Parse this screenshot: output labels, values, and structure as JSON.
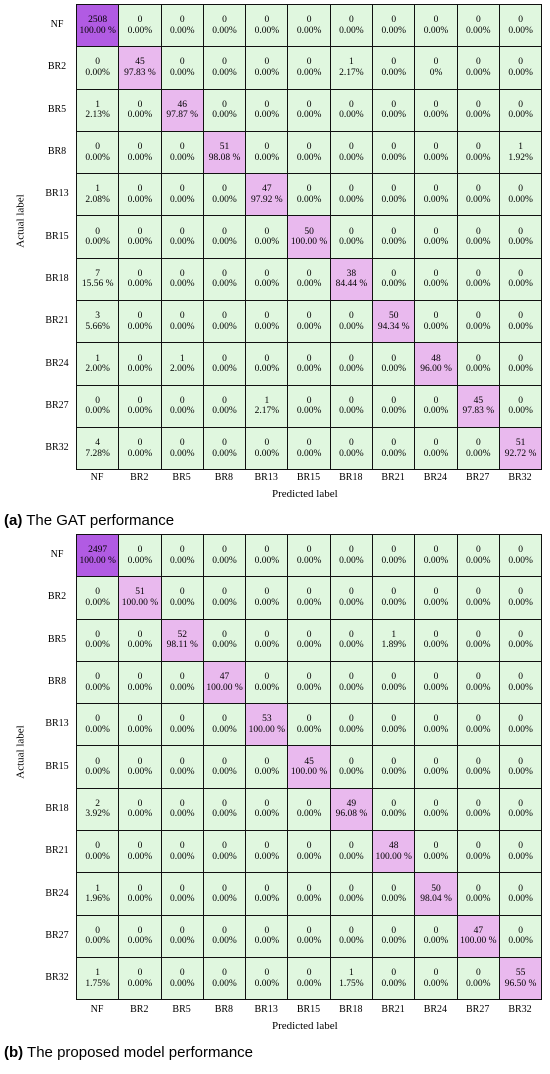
{
  "classes": [
    "NF",
    "BR2",
    "BR5",
    "BR8",
    "BR13",
    "BR15",
    "BR18",
    "BR21",
    "BR24",
    "BR27",
    "BR32"
  ],
  "colors": {
    "diag_strong": "#b15be3",
    "diag": "#e9b9ee",
    "off": "#e0f7df",
    "grid": "#111111"
  },
  "chart_data": [
    {
      "type": "heatmap",
      "caption_tag": "(a)",
      "caption_text": " The GAT performance",
      "xlabel": "Predicted label",
      "ylabel": "Actual label",
      "rows": [
        "NF",
        "BR2",
        "BR5",
        "BR8",
        "BR13",
        "BR15",
        "BR18",
        "BR21",
        "BR24",
        "BR27",
        "BR32"
      ],
      "cols": [
        "NF",
        "BR2",
        "BR5",
        "BR8",
        "BR13",
        "BR15",
        "BR18",
        "BR21",
        "BR24",
        "BR27",
        "BR32"
      ],
      "cells": [
        [
          [
            "2508",
            "100.00 %"
          ],
          [
            "0",
            "0.00%"
          ],
          [
            "0",
            "0.00%"
          ],
          [
            "0",
            "0.00%"
          ],
          [
            "0",
            "0.00%"
          ],
          [
            "0",
            "0.00%"
          ],
          [
            "0",
            "0.00%"
          ],
          [
            "0",
            "0.00%"
          ],
          [
            "0",
            "0.00%"
          ],
          [
            "0",
            "0.00%"
          ],
          [
            "0",
            "0.00%"
          ]
        ],
        [
          [
            "0",
            "0.00%"
          ],
          [
            "45",
            "97.83 %"
          ],
          [
            "0",
            "0.00%"
          ],
          [
            "0",
            "0.00%"
          ],
          [
            "0",
            "0.00%"
          ],
          [
            "0",
            "0.00%"
          ],
          [
            "1",
            "2.17%"
          ],
          [
            "0",
            "0.00%"
          ],
          [
            "0",
            "0%"
          ],
          [
            "0",
            "0.00%"
          ],
          [
            "0",
            "0.00%"
          ]
        ],
        [
          [
            "1",
            "2.13%"
          ],
          [
            "0",
            "0.00%"
          ],
          [
            "46",
            "97.87 %"
          ],
          [
            "0",
            "0.00%"
          ],
          [
            "0",
            "0.00%"
          ],
          [
            "0",
            "0.00%"
          ],
          [
            "0",
            "0.00%"
          ],
          [
            "0",
            "0.00%"
          ],
          [
            "0",
            "0.00%"
          ],
          [
            "0",
            "0.00%"
          ],
          [
            "0",
            "0.00%"
          ]
        ],
        [
          [
            "0",
            "0.00%"
          ],
          [
            "0",
            "0.00%"
          ],
          [
            "0",
            "0.00%"
          ],
          [
            "51",
            "98.08 %"
          ],
          [
            "0",
            "0.00%"
          ],
          [
            "0",
            "0.00%"
          ],
          [
            "0",
            "0.00%"
          ],
          [
            "0",
            "0.00%"
          ],
          [
            "0",
            "0.00%"
          ],
          [
            "0",
            "0.00%"
          ],
          [
            "1",
            "1.92%"
          ]
        ],
        [
          [
            "1",
            "2.08%"
          ],
          [
            "0",
            "0.00%"
          ],
          [
            "0",
            "0.00%"
          ],
          [
            "0",
            "0.00%"
          ],
          [
            "47",
            "97.92 %"
          ],
          [
            "0",
            "0.00%"
          ],
          [
            "0",
            "0.00%"
          ],
          [
            "0",
            "0.00%"
          ],
          [
            "0",
            "0.00%"
          ],
          [
            "0",
            "0.00%"
          ],
          [
            "0",
            "0.00%"
          ]
        ],
        [
          [
            "0",
            "0.00%"
          ],
          [
            "0",
            "0.00%"
          ],
          [
            "0",
            "0.00%"
          ],
          [
            "0",
            "0.00%"
          ],
          [
            "0",
            "0.00%"
          ],
          [
            "50",
            "100.00 %"
          ],
          [
            "0",
            "0.00%"
          ],
          [
            "0",
            "0.00%"
          ],
          [
            "0",
            "0.00%"
          ],
          [
            "0",
            "0.00%"
          ],
          [
            "0",
            "0.00%"
          ]
        ],
        [
          [
            "7",
            "15.56 %"
          ],
          [
            "0",
            "0.00%"
          ],
          [
            "0",
            "0.00%"
          ],
          [
            "0",
            "0.00%"
          ],
          [
            "0",
            "0.00%"
          ],
          [
            "0",
            "0.00%"
          ],
          [
            "38",
            "84.44 %"
          ],
          [
            "0",
            "0.00%"
          ],
          [
            "0",
            "0.00%"
          ],
          [
            "0",
            "0.00%"
          ],
          [
            "0",
            "0.00%"
          ]
        ],
        [
          [
            "3",
            "5.66%"
          ],
          [
            "0",
            "0.00%"
          ],
          [
            "0",
            "0.00%"
          ],
          [
            "0",
            "0.00%"
          ],
          [
            "0",
            "0.00%"
          ],
          [
            "0",
            "0.00%"
          ],
          [
            "0",
            "0.00%"
          ],
          [
            "50",
            "94.34 %"
          ],
          [
            "0",
            "0.00%"
          ],
          [
            "0",
            "0.00%"
          ],
          [
            "0",
            "0.00%"
          ]
        ],
        [
          [
            "1",
            "2.00%"
          ],
          [
            "0",
            "0.00%"
          ],
          [
            "1",
            "2.00%"
          ],
          [
            "0",
            "0.00%"
          ],
          [
            "0",
            "0.00%"
          ],
          [
            "0",
            "0.00%"
          ],
          [
            "0",
            "0.00%"
          ],
          [
            "0",
            "0.00%"
          ],
          [
            "48",
            "96.00 %"
          ],
          [
            "0",
            "0.00%"
          ],
          [
            "0",
            "0.00%"
          ]
        ],
        [
          [
            "0",
            "0.00%"
          ],
          [
            "0",
            "0.00%"
          ],
          [
            "0",
            "0.00%"
          ],
          [
            "0",
            "0.00%"
          ],
          [
            "1",
            "2.17%"
          ],
          [
            "0",
            "0.00%"
          ],
          [
            "0",
            "0.00%"
          ],
          [
            "0",
            "0.00%"
          ],
          [
            "0",
            "0.00%"
          ],
          [
            "45",
            "97.83 %"
          ],
          [
            "0",
            "0.00%"
          ]
        ],
        [
          [
            "4",
            "7.28%"
          ],
          [
            "0",
            "0.00%"
          ],
          [
            "0",
            "0.00%"
          ],
          [
            "0",
            "0.00%"
          ],
          [
            "0",
            "0.00%"
          ],
          [
            "0",
            "0.00%"
          ],
          [
            "0",
            "0.00%"
          ],
          [
            "0",
            "0.00%"
          ],
          [
            "0",
            "0.00%"
          ],
          [
            "0",
            "0.00%"
          ],
          [
            "51",
            "92.72 %"
          ]
        ]
      ]
    },
    {
      "type": "heatmap",
      "caption_tag": "(b)",
      "caption_text": " The proposed model performance",
      "xlabel": "Predicted label",
      "ylabel": "Actual label",
      "rows": [
        "NF",
        "BR2",
        "BR5",
        "BR8",
        "BR13",
        "BR15",
        "BR18",
        "BR21",
        "BR24",
        "BR27",
        "BR32"
      ],
      "cols": [
        "NF",
        "BR2",
        "BR5",
        "BR8",
        "BR13",
        "BR15",
        "BR18",
        "BR21",
        "BR24",
        "BR27",
        "BR32"
      ],
      "cells": [
        [
          [
            "2497",
            "100.00 %"
          ],
          [
            "0",
            "0.00%"
          ],
          [
            "0",
            "0.00%"
          ],
          [
            "0",
            "0.00%"
          ],
          [
            "0",
            "0.00%"
          ],
          [
            "0",
            "0.00%"
          ],
          [
            "0",
            "0.00%"
          ],
          [
            "0",
            "0.00%"
          ],
          [
            "0",
            "0.00%"
          ],
          [
            "0",
            "0.00%"
          ],
          [
            "0",
            "0.00%"
          ]
        ],
        [
          [
            "0",
            "0.00%"
          ],
          [
            "51",
            "100.00 %"
          ],
          [
            "0",
            "0.00%"
          ],
          [
            "0",
            "0.00%"
          ],
          [
            "0",
            "0.00%"
          ],
          [
            "0",
            "0.00%"
          ],
          [
            "0",
            "0.00%"
          ],
          [
            "0",
            "0.00%"
          ],
          [
            "0",
            "0.00%"
          ],
          [
            "0",
            "0.00%"
          ],
          [
            "0",
            "0.00%"
          ]
        ],
        [
          [
            "0",
            "0.00%"
          ],
          [
            "0",
            "0.00%"
          ],
          [
            "52",
            "98.11 %"
          ],
          [
            "0",
            "0.00%"
          ],
          [
            "0",
            "0.00%"
          ],
          [
            "0",
            "0.00%"
          ],
          [
            "0",
            "0.00%"
          ],
          [
            "1",
            "1.89%"
          ],
          [
            "0",
            "0.00%"
          ],
          [
            "0",
            "0.00%"
          ],
          [
            "0",
            "0.00%"
          ]
        ],
        [
          [
            "0",
            "0.00%"
          ],
          [
            "0",
            "0.00%"
          ],
          [
            "0",
            "0.00%"
          ],
          [
            "47",
            "100.00 %"
          ],
          [
            "0",
            "0.00%"
          ],
          [
            "0",
            "0.00%"
          ],
          [
            "0",
            "0.00%"
          ],
          [
            "0",
            "0.00%"
          ],
          [
            "0",
            "0.00%"
          ],
          [
            "0",
            "0.00%"
          ],
          [
            "0",
            "0.00%"
          ]
        ],
        [
          [
            "0",
            "0.00%"
          ],
          [
            "0",
            "0.00%"
          ],
          [
            "0",
            "0.00%"
          ],
          [
            "0",
            "0.00%"
          ],
          [
            "53",
            "100.00 %"
          ],
          [
            "0",
            "0.00%"
          ],
          [
            "0",
            "0.00%"
          ],
          [
            "0",
            "0.00%"
          ],
          [
            "0",
            "0.00%"
          ],
          [
            "0",
            "0.00%"
          ],
          [
            "0",
            "0.00%"
          ]
        ],
        [
          [
            "0",
            "0.00%"
          ],
          [
            "0",
            "0.00%"
          ],
          [
            "0",
            "0.00%"
          ],
          [
            "0",
            "0.00%"
          ],
          [
            "0",
            "0.00%"
          ],
          [
            "45",
            "100.00 %"
          ],
          [
            "0",
            "0.00%"
          ],
          [
            "0",
            "0.00%"
          ],
          [
            "0",
            "0.00%"
          ],
          [
            "0",
            "0.00%"
          ],
          [
            "0",
            "0.00%"
          ]
        ],
        [
          [
            "2",
            "3.92%"
          ],
          [
            "0",
            "0.00%"
          ],
          [
            "0",
            "0.00%"
          ],
          [
            "0",
            "0.00%"
          ],
          [
            "0",
            "0.00%"
          ],
          [
            "0",
            "0.00%"
          ],
          [
            "49",
            "96.08 %"
          ],
          [
            "0",
            "0.00%"
          ],
          [
            "0",
            "0.00%"
          ],
          [
            "0",
            "0.00%"
          ],
          [
            "0",
            "0.00%"
          ]
        ],
        [
          [
            "0",
            "0.00%"
          ],
          [
            "0",
            "0.00%"
          ],
          [
            "0",
            "0.00%"
          ],
          [
            "0",
            "0.00%"
          ],
          [
            "0",
            "0.00%"
          ],
          [
            "0",
            "0.00%"
          ],
          [
            "0",
            "0.00%"
          ],
          [
            "48",
            "100.00 %"
          ],
          [
            "0",
            "0.00%"
          ],
          [
            "0",
            "0.00%"
          ],
          [
            "0",
            "0.00%"
          ]
        ],
        [
          [
            "1",
            "1.96%"
          ],
          [
            "0",
            "0.00%"
          ],
          [
            "0",
            "0.00%"
          ],
          [
            "0",
            "0.00%"
          ],
          [
            "0",
            "0.00%"
          ],
          [
            "0",
            "0.00%"
          ],
          [
            "0",
            "0.00%"
          ],
          [
            "0",
            "0.00%"
          ],
          [
            "50",
            "98.04 %"
          ],
          [
            "0",
            "0.00%"
          ],
          [
            "0",
            "0.00%"
          ]
        ],
        [
          [
            "0",
            "0.00%"
          ],
          [
            "0",
            "0.00%"
          ],
          [
            "0",
            "0.00%"
          ],
          [
            "0",
            "0.00%"
          ],
          [
            "0",
            "0.00%"
          ],
          [
            "0",
            "0.00%"
          ],
          [
            "0",
            "0.00%"
          ],
          [
            "0",
            "0.00%"
          ],
          [
            "0",
            "0.00%"
          ],
          [
            "47",
            "100.00 %"
          ],
          [
            "0",
            "0.00%"
          ]
        ],
        [
          [
            "1",
            "1.75%"
          ],
          [
            "0",
            "0.00%"
          ],
          [
            "0",
            "0.00%"
          ],
          [
            "0",
            "0.00%"
          ],
          [
            "0",
            "0.00%"
          ],
          [
            "0",
            "0.00%"
          ],
          [
            "1",
            "1.75%"
          ],
          [
            "0",
            "0.00%"
          ],
          [
            "0",
            "0.00%"
          ],
          [
            "0",
            "0.00%"
          ],
          [
            "55",
            "96.50 %"
          ]
        ]
      ]
    }
  ]
}
